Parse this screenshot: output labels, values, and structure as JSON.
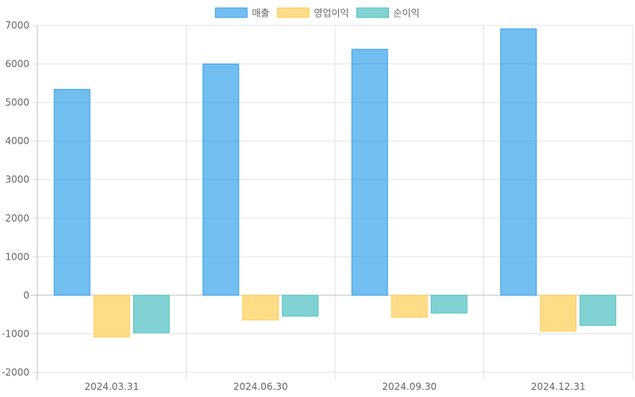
{
  "chart_data": {
    "type": "bar",
    "categories": [
      "2024.03.31",
      "2024.06.30",
      "2024.09.30",
      "2024.12.31"
    ],
    "series": [
      {
        "name": "매출",
        "values": [
          5340,
          6000,
          6380,
          6910
        ],
        "color": "#36a2eb"
      },
      {
        "name": "영업이익",
        "values": [
          -1080,
          -640,
          -570,
          -930
        ],
        "color": "#ffcd56"
      },
      {
        "name": "순이익",
        "values": [
          -970,
          -540,
          -460,
          -780
        ],
        "color": "#4bc0c0"
      }
    ],
    "ylim": [
      -2000,
      7000
    ],
    "yticks": [
      7000,
      6000,
      5000,
      4000,
      3000,
      2000,
      1000,
      0,
      -1000,
      -2000
    ],
    "grid": true,
    "legend": "top-center"
  }
}
